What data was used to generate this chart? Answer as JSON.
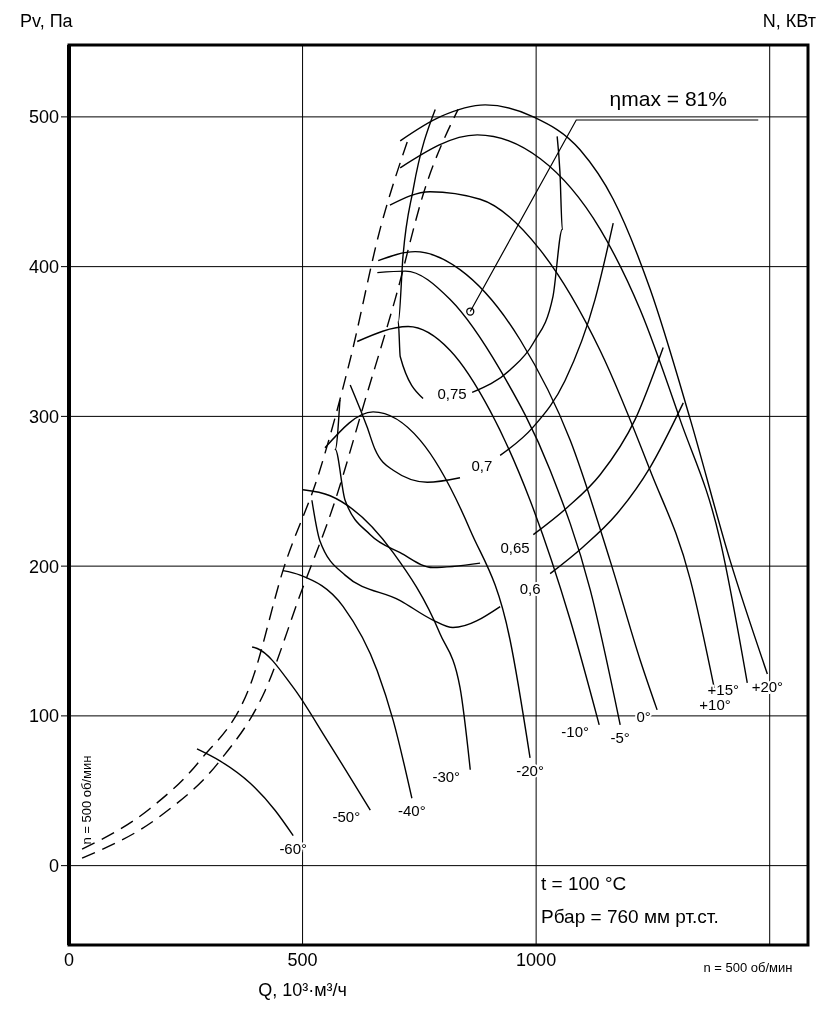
{
  "chart_data": {
    "type": "line",
    "xlabel": "Q, 10³·м³/ч",
    "ylabel": "Pv, Па",
    "xlim": [
      0,
      1582
    ],
    "ylim": [
      -53,
      548
    ],
    "xticks": [
      0,
      500,
      1000,
      {
        "value": 1500,
        "label": null
      }
    ],
    "yticks": [
      0,
      100,
      200,
      300,
      400,
      500
    ],
    "grid": true,
    "line_style": "solid",
    "series": [
      {
        "name": "-60°",
        "color": "#000000",
        "x": [
          274,
          323,
          388,
          441,
          480
        ],
        "values": [
          78,
          70,
          55,
          37,
          20
        ]
      },
      {
        "name": "-50°",
        "color": "#000000",
        "x": [
          392,
          403,
          480,
          552,
          645
        ],
        "values": [
          146,
          145,
          119,
          84,
          37
        ]
      },
      {
        "name": "-40°",
        "color": "#000000",
        "x": [
          458,
          495,
          587,
          660,
          694,
          734
        ],
        "values": [
          197,
          194,
          173,
          130,
          97,
          45
        ]
      },
      {
        "name": "-30°",
        "color": "#000000",
        "x": [
          501,
          559,
          694,
          794,
          837,
          859
        ],
        "values": [
          251,
          247,
          209,
          155,
          119,
          64
        ]
      },
      {
        "name": "-20°",
        "color": "#000000",
        "x": [
          548,
          651,
          752,
          859,
          944,
          987
        ],
        "values": [
          279,
          303,
          284,
          224,
          151,
          72
        ]
      },
      {
        "name": "-10°",
        "color": "#000000",
        "x": [
          617,
          726,
          816,
          901,
          987,
          1073,
          1135
        ],
        "values": [
          350,
          360,
          344,
          304,
          244,
          164,
          94
        ]
      },
      {
        "name": "-5°",
        "color": "#000000",
        "x": [
          660,
          720,
          816,
          923,
          1030,
          1116,
          1180
        ],
        "values": [
          396,
          397,
          378,
          331,
          264,
          184,
          94
        ]
      },
      {
        "name": "0°",
        "color": "#000000",
        "x": [
          662,
          741,
          837,
          966,
          1073,
          1158,
          1223,
          1259
        ],
        "values": [
          404,
          410,
          398,
          351,
          284,
          204,
          137,
          104
        ]
      },
      {
        "name": "+10°",
        "color": "#000000",
        "x": [
          687,
          773,
          880,
          1009,
          1137,
          1244,
          1330,
          1383
        ],
        "values": [
          441,
          450,
          445,
          411,
          344,
          264,
          191,
          116
        ]
      },
      {
        "name": "+15°",
        "color": "#000000",
        "x": [
          709,
          874,
          1009,
          1137,
          1223,
          1308,
          1394,
          1452
        ],
        "values": [
          466,
          488,
          472,
          425,
          371,
          298,
          217,
          122
        ]
      },
      {
        "name": "+20°",
        "color": "#000000",
        "x": [
          709,
          794,
          891,
          994,
          1094,
          1165,
          1244,
          1330,
          1415,
          1495
        ],
        "values": [
          484,
          500,
          508,
          500,
          478,
          445,
          385,
          298,
          204,
          128
        ]
      },
      {
        "name": "0,75",
        "color": "#000000",
        "x": [
          784,
          737,
          715,
          705,
          709,
          758,
          820,
          863,
          944,
          994,
          1036,
          1056,
          1051,
          1045
        ],
        "values": [
          505,
          452,
          407,
          363,
          340,
          312,
          null,
          316,
          331,
          349,
          380,
          425,
          463,
          487
        ]
      },
      {
        "name": "0,7",
        "color": "#000000",
        "x": [
          602,
          638,
          655,
          694,
          767,
          837,
          884,
          923,
          994,
          1062,
          1126,
          1165
        ],
        "values": [
          321,
          293,
          278,
          264,
          256,
          259,
          null,
          274,
          293,
          324,
          378,
          429
        ]
      },
      {
        "name": "0,65",
        "color": "#000000",
        "x": [
          580,
          570,
          591,
          645,
          709,
          779,
          880,
          955,
          994,
          1066,
          1137,
          1212,
          1272
        ],
        "values": [
          311,
          278,
          244,
          221,
          209,
          199,
          202,
          null,
          221,
          239,
          261,
          298,
          346
        ]
      },
      {
        "name": "0,6",
        "color": "#000000",
        "x": [
          520,
          537,
          591,
          709,
          779,
          822,
          923,
          987,
          1030,
          1101,
          1173,
          1244,
          1315
        ],
        "values": [
          244,
          217,
          194,
          177,
          164,
          159,
          173,
          null,
          195,
          213,
          235,
          266,
          309
        ]
      },
      {
        "color": "#000000",
        "line_style": "dashed",
        "x": [
          28,
          173,
          280,
          392,
          458,
          537,
          602,
          666,
          726
        ],
        "values": [
          11,
          38,
          70,
          124,
          197,
          264,
          338,
          425,
          485
        ]
      },
      {
        "color": "#000000",
        "line_style": "dashed",
        "x": [
          28,
          195,
          323,
          420,
          495,
          570,
          634,
          698,
          762,
          833
        ],
        "values": [
          5,
          33,
          70,
          117,
          181,
          244,
          311,
          378,
          452,
          505
        ]
      }
    ],
    "annotations": [
      {
        "text": "ηmax = 81%",
        "x": 859,
        "y": 370
      },
      "t = 100 °C",
      "Рбар = 760 мм рт.ст.",
      "n = 500 об/мин",
      "n = 500 об/мин",
      "N, КВт"
    ]
  }
}
